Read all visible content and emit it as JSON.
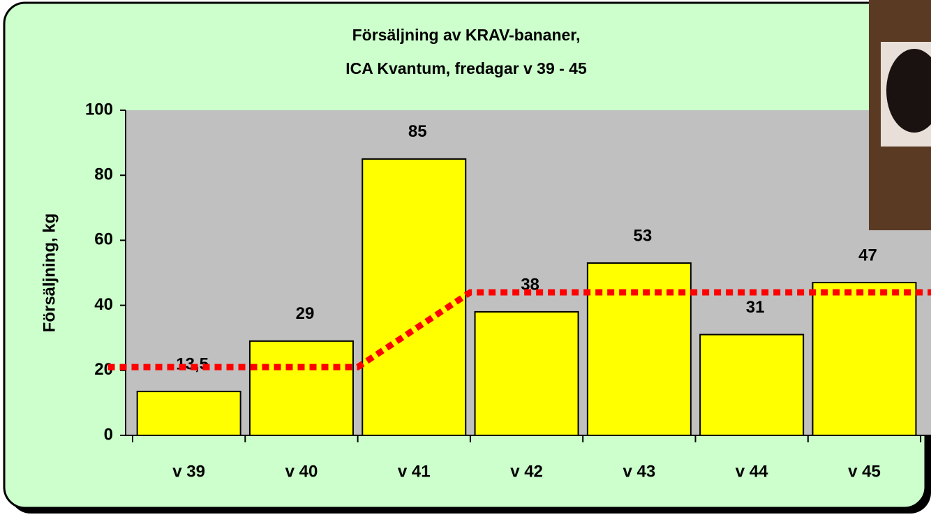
{
  "chart_data": {
    "type": "bar",
    "title_lines": [
      "Försäljning av KRAV-bananer,",
      "ICA Kvantum, fredagar v 39 - 45"
    ],
    "y_label": "Försäljning, kg",
    "categories": [
      "v 39",
      "v 40",
      "v 41",
      "v 42",
      "v 43",
      "v 44",
      "v 45"
    ],
    "values": [
      13.5,
      29,
      85,
      38,
      53,
      31,
      47
    ],
    "value_labels": [
      "13,5",
      "29",
      "85",
      "38",
      "53",
      "31",
      "47"
    ],
    "color": "#ffff00",
    "ylim": [
      0,
      100
    ],
    "yticks": [
      0,
      20,
      40,
      60,
      80,
      100
    ],
    "trend": {
      "type": "line",
      "color": "#ff0000",
      "x": [
        -0.72,
        1.5,
        2.5,
        6.62
      ],
      "values": [
        21,
        21,
        44,
        44
      ]
    }
  }
}
